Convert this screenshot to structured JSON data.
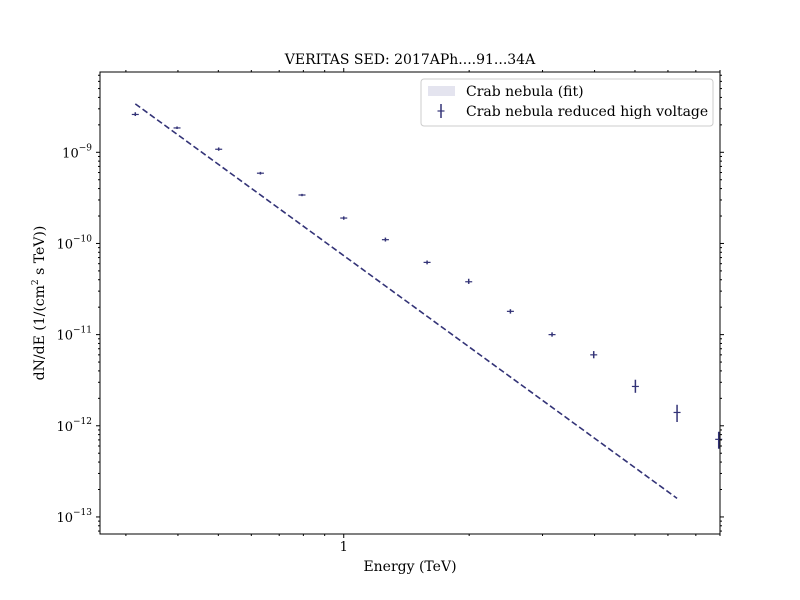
{
  "chart_data": {
    "type": "scatter",
    "title": "VERITAS SED: 2017APh....91...34A",
    "xlabel": "Energy (TeV)",
    "ylabel_main": "dN/dE (1/(cm",
    "ylabel_sup": "2",
    "ylabel_tail": " s TeV))",
    "x_scale": "log",
    "y_scale": "log",
    "xlim": [
      0.26,
      8.0
    ],
    "ylim": [
      6.5e-14,
      7.6e-09
    ],
    "x_ticks": [
      {
        "value": 1,
        "label": "1"
      }
    ],
    "y_ticks": [
      {
        "value": 1e-13,
        "base": "10",
        "exp": "−13"
      },
      {
        "value": 1e-12,
        "base": "10",
        "exp": "−12"
      },
      {
        "value": 1e-11,
        "base": "10",
        "exp": "−11"
      },
      {
        "value": 1e-10,
        "base": "10",
        "exp": "−10"
      },
      {
        "value": 1e-09,
        "base": "10",
        "exp": "−9"
      }
    ],
    "grid": false,
    "legend_position": "top-right",
    "colors": {
      "series": "#333377",
      "fit_band": "#e4e4ef"
    },
    "series": [
      {
        "name": "Crab nebula (fit)",
        "kind": "fit",
        "x": [
          0.316,
          6.31
        ],
        "y": [
          3.4e-09,
          1.6e-13
        ]
      },
      {
        "name": "Crab nebula reduced high voltage",
        "kind": "points",
        "x": [
          0.316,
          0.398,
          0.501,
          0.631,
          0.794,
          1.0,
          1.259,
          1.585,
          1.995,
          2.512,
          3.162,
          3.981,
          5.012,
          6.31,
          7.943
        ],
        "y": [
          2.6e-09,
          1.85e-09,
          1.08e-09,
          5.9e-10,
          3.4e-10,
          1.9e-10,
          1.1e-10,
          6.2e-11,
          3.8e-11,
          1.8e-11,
          1e-11,
          6e-12,
          2.7e-12,
          1.4e-12,
          7.1e-13
        ],
        "yerr_lo": [
          1e-10,
          5e-11,
          4e-11,
          2e-11,
          1e-11,
          8e-12,
          5e-12,
          3e-12,
          2e-12,
          1e-12,
          5e-13,
          5e-13,
          4e-13,
          3e-13,
          1.5e-13
        ],
        "yerr_hi": [
          1.5e-10,
          7e-11,
          5e-11,
          2e-11,
          1e-11,
          8e-12,
          6e-12,
          3e-12,
          3e-12,
          1e-12,
          6e-13,
          6e-13,
          5e-13,
          3e-13,
          1.5e-13
        ]
      }
    ]
  }
}
